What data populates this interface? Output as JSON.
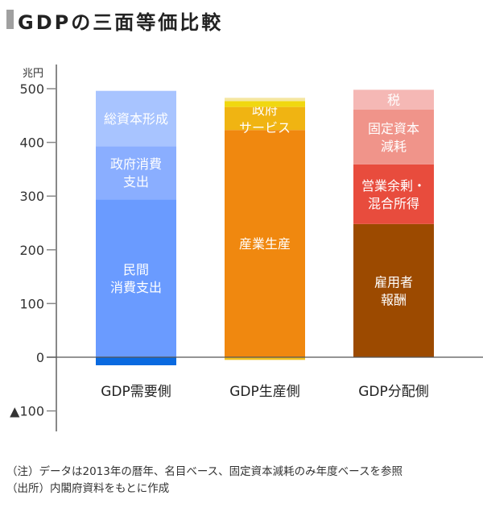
{
  "title": "GDPの三面等価比較",
  "chart_data": {
    "type": "bar",
    "stacked": true,
    "unit_label": "兆円",
    "ylim": [
      -100,
      500
    ],
    "yticks": [
      500,
      400,
      300,
      200,
      100,
      0,
      -100
    ],
    "ytick_labels": [
      "500",
      "400",
      "300",
      "200",
      "100",
      "0",
      "▲100"
    ],
    "grid": false,
    "categories": [
      "GDP需要側",
      "GDP生産側",
      "GDP分配側"
    ],
    "bars": [
      {
        "category": "GDP需要側",
        "segments": [
          {
            "label": "",
            "value": -15,
            "color": "#0a6ae0"
          },
          {
            "label": "民間\n消費支出",
            "value": 294,
            "color": "#6a9bff"
          },
          {
            "label": "政府消費\n支出",
            "value": 99,
            "color": "#8aaeff"
          },
          {
            "label": "総資本形成",
            "value": 103,
            "color": "#a8c4ff"
          }
        ]
      },
      {
        "category": "GDP生産側",
        "segments": [
          {
            "label": "",
            "value": -5,
            "color": "#f0c020"
          },
          {
            "label": "産業生産",
            "value": 423,
            "color": "#f0880f"
          },
          {
            "label": "政府\nサービス",
            "value": 43,
            "color": "#f0b412"
          },
          {
            "label": "",
            "value": 11,
            "color": "#f0d810"
          },
          {
            "label": "",
            "value": 6,
            "color": "#f5e6a0"
          }
        ]
      },
      {
        "category": "GDP分配側",
        "segments": [
          {
            "label": "雇用者\n報酬",
            "value": 248,
            "color": "#9c4a00"
          },
          {
            "label": "営業余剰・\n混合所得",
            "value": 111,
            "color": "#e84c3d"
          },
          {
            "label": "固定資本\n減耗",
            "value": 102,
            "color": "#f0948a"
          },
          {
            "label": "税",
            "value": 37,
            "color": "#f5b8b5"
          }
        ]
      }
    ]
  },
  "notes": [
    "（注）データは2013年の暦年、名目ベース、固定資本減耗のみ年度ベースを参照",
    "（出所）内閣府資料をもとに作成"
  ]
}
